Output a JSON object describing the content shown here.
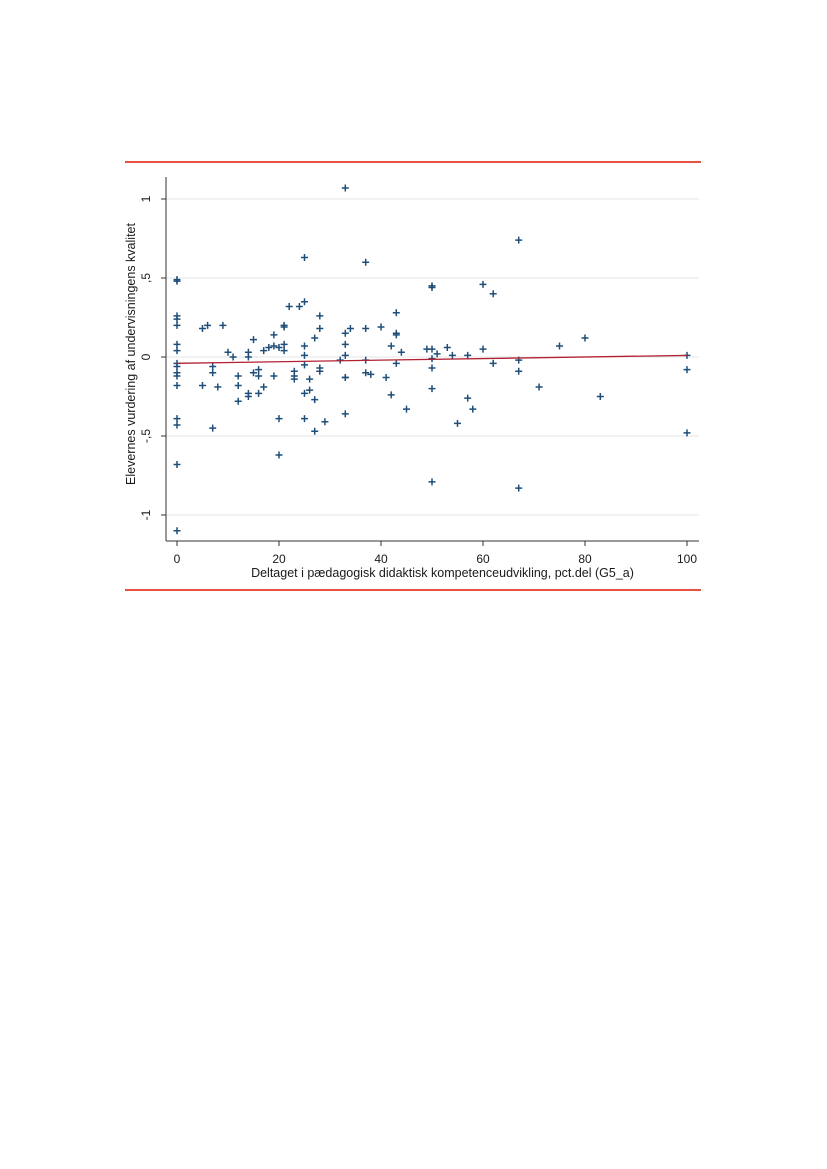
{
  "page": {
    "rule_color": "#e8503a"
  },
  "chart_data": {
    "type": "scatter",
    "xlabel": "Deltaget i pædagogisk didaktisk kompetenceudvikling, pct.del (G5_a)",
    "ylabel": "Elevernes vurdering af undervisningens kvalitet",
    "xlim": [
      -2,
      102
    ],
    "ylim": [
      -1.17,
      1.12
    ],
    "x_ticks": [
      0,
      20,
      40,
      60,
      80,
      100
    ],
    "x_tick_labels": [
      "0",
      "20",
      "40",
      "60",
      "80",
      "100"
    ],
    "y_ticks": [
      -1,
      -0.5,
      0,
      0.5,
      1
    ],
    "y_tick_labels": [
      "-1",
      "-,5",
      "0",
      ",5",
      "1"
    ],
    "grid": "horizontal",
    "marker": "plus",
    "marker_color": "#1f4e79",
    "fit_line_color": "#b22234",
    "fit_line": {
      "x": [
        0,
        100
      ],
      "y": [
        -0.04,
        0.01
      ]
    },
    "points": [
      [
        0,
        0.49
      ],
      [
        0,
        0.48
      ],
      [
        0,
        0.26
      ],
      [
        0,
        0.24
      ],
      [
        0,
        0.2
      ],
      [
        0,
        0.08
      ],
      [
        0,
        0.04
      ],
      [
        0,
        -0.04
      ],
      [
        0,
        -0.06
      ],
      [
        0,
        -0.1
      ],
      [
        0,
        -0.12
      ],
      [
        0,
        -0.18
      ],
      [
        0,
        -0.39
      ],
      [
        0,
        -0.43
      ],
      [
        0,
        -0.68
      ],
      [
        0,
        -1.1
      ],
      [
        5,
        0.18
      ],
      [
        5,
        -0.18
      ],
      [
        6,
        0.2
      ],
      [
        7,
        -0.06
      ],
      [
        7,
        -0.1
      ],
      [
        7,
        -0.45
      ],
      [
        8,
        -0.19
      ],
      [
        9,
        0.2
      ],
      [
        10,
        0.03
      ],
      [
        11,
        0.0
      ],
      [
        12,
        -0.12
      ],
      [
        12,
        -0.18
      ],
      [
        12,
        -0.28
      ],
      [
        14,
        0.03
      ],
      [
        14,
        0.0
      ],
      [
        14,
        -0.23
      ],
      [
        14,
        -0.25
      ],
      [
        15,
        0.11
      ],
      [
        15,
        -0.1
      ],
      [
        16,
        -0.08
      ],
      [
        16,
        -0.12
      ],
      [
        16,
        -0.23
      ],
      [
        17,
        0.04
      ],
      [
        17,
        -0.19
      ],
      [
        18,
        0.06
      ],
      [
        19,
        0.14
      ],
      [
        19,
        -0.12
      ],
      [
        19,
        0.07
      ],
      [
        20,
        -0.39
      ],
      [
        20,
        0.06
      ],
      [
        20,
        -0.62
      ],
      [
        21,
        0.19
      ],
      [
        21,
        0.2
      ],
      [
        21,
        0.08
      ],
      [
        21,
        0.04
      ],
      [
        22,
        0.32
      ],
      [
        23,
        -0.09
      ],
      [
        23,
        -0.12
      ],
      [
        23,
        -0.14
      ],
      [
        24,
        0.32
      ],
      [
        25,
        0.63
      ],
      [
        25,
        0.35
      ],
      [
        25,
        0.07
      ],
      [
        25,
        0.01
      ],
      [
        25,
        -0.05
      ],
      [
        25,
        -0.23
      ],
      [
        25,
        -0.39
      ],
      [
        26,
        -0.14
      ],
      [
        26,
        -0.21
      ],
      [
        27,
        0.12
      ],
      [
        27,
        -0.27
      ],
      [
        27,
        -0.47
      ],
      [
        28,
        0.26
      ],
      [
        28,
        0.18
      ],
      [
        28,
        -0.07
      ],
      [
        28,
        -0.09
      ],
      [
        29,
        -0.41
      ],
      [
        32,
        -0.02
      ],
      [
        33,
        1.07
      ],
      [
        33,
        0.15
      ],
      [
        33,
        0.08
      ],
      [
        33,
        0.01
      ],
      [
        33,
        -0.13
      ],
      [
        33,
        -0.13
      ],
      [
        33,
        -0.36
      ],
      [
        34,
        0.18
      ],
      [
        37,
        0.6
      ],
      [
        37,
        0.18
      ],
      [
        37,
        -0.02
      ],
      [
        37,
        -0.1
      ],
      [
        38,
        -0.11
      ],
      [
        40,
        0.19
      ],
      [
        41,
        -0.13
      ],
      [
        42,
        0.07
      ],
      [
        42,
        -0.24
      ],
      [
        43,
        0.28
      ],
      [
        43,
        0.15
      ],
      [
        43,
        0.14
      ],
      [
        43,
        -0.04
      ],
      [
        44,
        0.03
      ],
      [
        45,
        -0.33
      ],
      [
        49,
        0.05
      ],
      [
        50,
        0.45
      ],
      [
        50,
        0.44
      ],
      [
        50,
        0.05
      ],
      [
        50,
        -0.01
      ],
      [
        50,
        -0.07
      ],
      [
        50,
        -0.2
      ],
      [
        50,
        -0.79
      ],
      [
        51,
        0.02
      ],
      [
        53,
        0.06
      ],
      [
        54,
        0.01
      ],
      [
        55,
        -0.42
      ],
      [
        57,
        0.01
      ],
      [
        57,
        -0.26
      ],
      [
        58,
        -0.33
      ],
      [
        60,
        0.46
      ],
      [
        60,
        0.05
      ],
      [
        62,
        0.4
      ],
      [
        62,
        -0.04
      ],
      [
        67,
        0.74
      ],
      [
        67,
        -0.02
      ],
      [
        67,
        -0.09
      ],
      [
        67,
        -0.83
      ],
      [
        71,
        -0.19
      ],
      [
        75,
        0.07
      ],
      [
        80,
        0.12
      ],
      [
        83,
        -0.25
      ],
      [
        100,
        0.01
      ],
      [
        100,
        -0.08
      ],
      [
        100,
        -0.48
      ]
    ]
  }
}
